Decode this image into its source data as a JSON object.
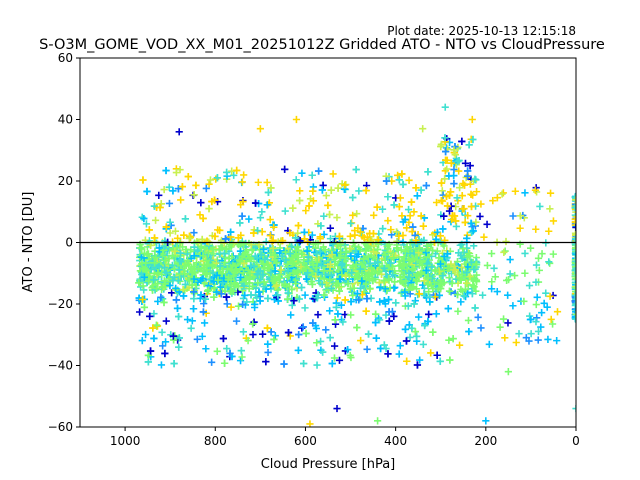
{
  "plot_date": "Plot date: 2025-10-13 12:15:18",
  "chart_data": {
    "type": "scatter",
    "title": "S-O3M_GOME_VOD_XX_M01_20251012Z Gridded ATO - NTO vs CloudPressure",
    "xlabel": "Cloud Pressure [hPa]",
    "ylabel": "ATO - NTO [DU]",
    "xlim": [
      1100,
      0
    ],
    "ylim": [
      -60,
      60
    ],
    "x_inverted": true,
    "xticks": [
      1000,
      800,
      600,
      400,
      200,
      0
    ],
    "yticks": [
      -60,
      -40,
      -20,
      0,
      20,
      40,
      60
    ],
    "reference_line_y": 0,
    "marker": "+",
    "grid": false,
    "legend": "none",
    "colors": [
      "#0000cc",
      "#1e90ff",
      "#00bfff",
      "#40e0d0",
      "#7cfc70",
      "#c8f050",
      "#ffd700"
    ],
    "point_clusters": [
      {
        "x_range": [
          970,
          220
        ],
        "y_center": -8,
        "y_spread": 32,
        "note": "dense band"
      },
      {
        "x_range": [
          220,
          40
        ],
        "y_center": -8,
        "y_spread": 30,
        "note": "sparse tail"
      },
      {
        "x_range": [
          2,
          0
        ],
        "y_center": -5,
        "y_spread": 45,
        "note": "x=0 column"
      }
    ],
    "sample_points": [
      {
        "x": 290,
        "y": 44
      },
      {
        "x": 620,
        "y": 40
      },
      {
        "x": 700,
        "y": 37
      },
      {
        "x": 880,
        "y": 36
      },
      {
        "x": 340,
        "y": 37
      },
      {
        "x": 230,
        "y": 40
      },
      {
        "x": 530,
        "y": -54
      },
      {
        "x": 590,
        "y": -59
      },
      {
        "x": 440,
        "y": -58
      },
      {
        "x": 200,
        "y": -58
      },
      {
        "x": 0,
        "y": -54
      },
      {
        "x": 150,
        "y": -42
      },
      {
        "x": 90,
        "y": 17
      },
      {
        "x": 100,
        "y": -25
      },
      {
        "x": 50,
        "y": 7
      }
    ]
  }
}
